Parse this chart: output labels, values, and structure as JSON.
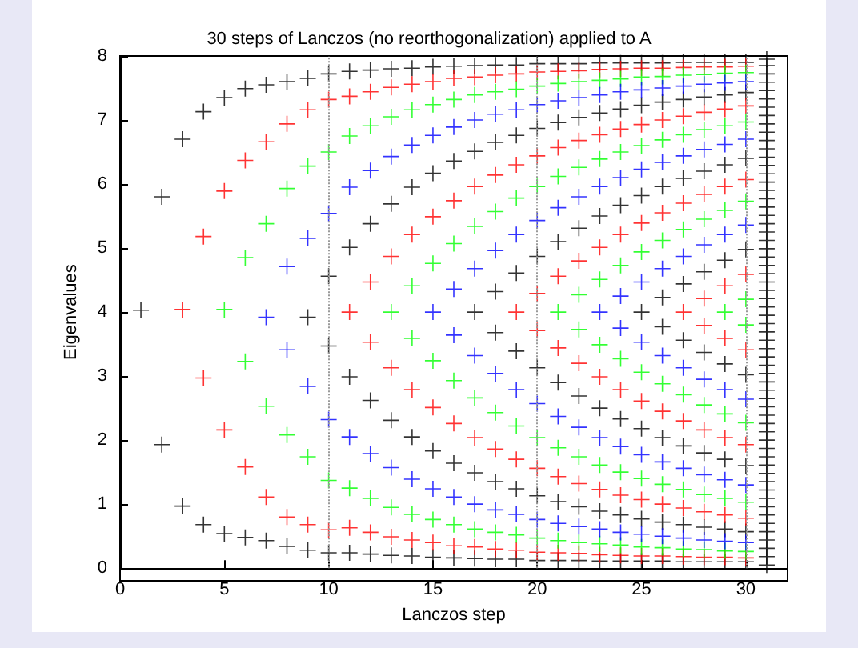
{
  "chart_data": {
    "type": "scatter",
    "title": "30 steps of Lanczos (no reorthogonalization) applied to A",
    "xlabel": "Lanczos step",
    "ylabel": "Eigenvalues",
    "xlim": [
      0,
      32
    ],
    "xticks": [
      0,
      5,
      10,
      15,
      20,
      25,
      30
    ],
    "ylim": [
      0,
      8
    ],
    "yticks": [
      0,
      1,
      2,
      3,
      4,
      5,
      6,
      7,
      8
    ],
    "marker": "cross",
    "ref_lines": [
      {
        "axis": "x",
        "value": 10,
        "color": "#999999",
        "line_style": "dotted"
      },
      {
        "axis": "x",
        "value": 20,
        "color": "#999999",
        "line_style": "dotted"
      },
      {
        "axis": "x",
        "value": 30,
        "color": "#999999",
        "line_style": "dotted"
      }
    ],
    "series": [
      {
        "color": "#000000",
        "x": [
          1,
          2,
          2,
          3,
          3,
          4,
          4,
          5,
          5,
          6,
          6,
          7,
          7,
          8,
          8,
          9,
          9,
          9,
          10,
          10,
          10,
          10,
          11,
          11,
          11,
          11,
          12,
          12,
          12,
          12,
          13,
          13,
          13,
          13,
          14,
          14,
          14,
          14,
          15,
          15,
          15,
          15,
          16,
          16,
          16,
          16,
          17,
          17,
          17,
          17,
          17,
          18,
          18,
          18,
          18,
          18,
          18,
          19,
          19,
          19,
          19,
          19,
          19,
          20,
          20,
          20,
          20,
          20,
          20,
          21,
          21,
          21,
          21,
          21,
          21,
          22,
          22,
          22,
          22,
          22,
          22,
          23,
          23,
          23,
          23,
          23,
          23,
          24,
          24,
          24,
          24,
          24,
          24,
          25,
          25,
          25,
          25,
          25,
          25,
          25,
          26,
          26,
          26,
          26,
          26,
          26,
          26,
          26,
          27,
          27,
          27,
          27,
          27,
          27,
          27,
          27,
          28,
          28,
          28,
          28,
          28,
          28,
          28,
          28,
          29,
          29,
          29,
          29,
          29,
          29,
          29,
          29,
          30,
          30,
          30,
          30,
          30,
          30,
          30,
          30,
          31,
          31,
          31,
          31,
          31,
          31,
          31,
          31,
          31,
          31,
          31,
          31,
          31,
          31,
          31,
          31,
          31,
          31,
          31,
          31,
          31,
          31,
          31,
          31,
          31,
          31,
          31,
          31,
          31,
          31,
          31,
          31,
          31,
          31,
          31,
          31,
          31,
          31,
          31,
          31,
          31,
          31,
          31,
          31,
          31,
          31,
          31,
          31,
          31,
          31,
          31,
          31,
          31,
          31,
          31,
          31,
          31,
          31,
          31,
          31,
          31,
          31
        ],
        "values": [
          4.03,
          5.8,
          1.93,
          6.7,
          0.97,
          7.13,
          0.68,
          7.35,
          0.54,
          7.49,
          0.48,
          7.55,
          0.43,
          7.6,
          0.34,
          7.65,
          0.28,
          3.92,
          7.72,
          0.24,
          4.56,
          3.47,
          7.76,
          0.24,
          5.01,
          2.99,
          7.78,
          0.22,
          5.38,
          2.62,
          7.8,
          0.2,
          5.69,
          2.31,
          7.81,
          0.19,
          5.95,
          2.05,
          7.83,
          0.17,
          6.17,
          1.83,
          7.84,
          0.16,
          6.36,
          1.64,
          7.85,
          0.15,
          6.51,
          1.49,
          4.0,
          7.86,
          0.14,
          6.65,
          1.35,
          4.32,
          3.68,
          7.86,
          0.14,
          6.76,
          1.24,
          4.61,
          3.39,
          7.88,
          0.12,
          6.87,
          1.13,
          4.87,
          3.13,
          7.88,
          0.12,
          6.96,
          1.04,
          5.1,
          2.9,
          7.88,
          0.12,
          7.04,
          0.96,
          5.31,
          2.69,
          7.89,
          0.11,
          7.11,
          0.89,
          5.5,
          2.5,
          7.89,
          0.11,
          7.17,
          0.83,
          5.67,
          2.33,
          7.89,
          0.11,
          7.23,
          0.77,
          5.82,
          2.18,
          4.0,
          7.89,
          0.11,
          7.28,
          0.72,
          5.96,
          2.04,
          4.23,
          3.77,
          7.9,
          0.1,
          7.32,
          0.68,
          6.09,
          1.91,
          4.44,
          3.56,
          7.9,
          0.1,
          7.36,
          0.64,
          6.2,
          1.8,
          4.63,
          3.37,
          7.9,
          0.1,
          7.39,
          0.61,
          6.3,
          1.7,
          4.81,
          3.19,
          7.9,
          0.1,
          7.43,
          0.57,
          6.4,
          1.6,
          4.98,
          3.02,
          0.05,
          0.18,
          0.31,
          0.44,
          0.57,
          0.7,
          0.83,
          0.96,
          1.09,
          1.22,
          1.35,
          1.48,
          1.61,
          1.74,
          1.87,
          2.0,
          2.13,
          2.26,
          2.39,
          2.52,
          2.65,
          2.78,
          2.91,
          3.04,
          3.17,
          3.3,
          3.43,
          3.56,
          3.69,
          3.82,
          3.95,
          4.08,
          4.21,
          4.34,
          4.47,
          4.6,
          4.73,
          4.86,
          4.99,
          5.12,
          5.25,
          5.38,
          5.51,
          5.64,
          5.77,
          5.9,
          6.03,
          6.16,
          6.29,
          6.42,
          6.55,
          6.68,
          6.81,
          6.94,
          7.07,
          7.2,
          7.33,
          7.46,
          7.59,
          7.72,
          7.85,
          7.95
        ]
      },
      {
        "color": "#ff0000",
        "x": [
          3,
          4,
          4,
          5,
          5,
          6,
          6,
          7,
          7,
          8,
          8,
          9,
          9,
          10,
          10,
          11,
          11,
          11,
          12,
          12,
          12,
          12,
          13,
          13,
          13,
          13,
          14,
          14,
          14,
          14,
          15,
          15,
          15,
          15,
          16,
          16,
          16,
          16,
          17,
          17,
          17,
          17,
          18,
          18,
          18,
          18,
          19,
          19,
          19,
          19,
          19,
          20,
          20,
          20,
          20,
          20,
          20,
          21,
          21,
          21,
          21,
          21,
          21,
          22,
          22,
          22,
          22,
          22,
          22,
          23,
          23,
          23,
          23,
          23,
          23,
          24,
          24,
          24,
          24,
          24,
          24,
          25,
          25,
          25,
          25,
          25,
          25,
          26,
          26,
          26,
          26,
          26,
          26,
          27,
          27,
          27,
          27,
          27,
          27,
          27,
          28,
          28,
          28,
          28,
          28,
          28,
          28,
          28,
          29,
          29,
          29,
          29,
          29,
          29,
          29,
          29,
          30,
          30,
          30,
          30,
          30,
          30,
          30,
          30
        ],
        "values": [
          4.04,
          5.18,
          2.97,
          5.89,
          2.16,
          6.37,
          1.58,
          6.66,
          1.11,
          6.94,
          0.8,
          7.16,
          0.68,
          7.32,
          0.6,
          7.37,
          0.63,
          4.0,
          7.44,
          0.56,
          4.47,
          3.53,
          7.51,
          0.49,
          4.87,
          3.13,
          7.56,
          0.44,
          5.21,
          2.79,
          7.6,
          0.4,
          5.49,
          2.51,
          7.65,
          0.35,
          5.74,
          2.26,
          7.67,
          0.33,
          5.96,
          2.04,
          7.7,
          0.3,
          6.14,
          1.86,
          7.72,
          0.28,
          6.3,
          1.7,
          4.0,
          7.75,
          0.25,
          6.44,
          1.56,
          4.29,
          3.71,
          7.76,
          0.24,
          6.57,
          1.43,
          4.56,
          3.44,
          7.77,
          0.23,
          6.68,
          1.32,
          4.8,
          3.2,
          7.79,
          0.21,
          6.77,
          1.23,
          5.01,
          2.99,
          7.8,
          0.2,
          6.86,
          1.14,
          5.21,
          2.79,
          7.81,
          0.19,
          6.93,
          1.07,
          5.39,
          2.61,
          7.81,
          0.19,
          7.0,
          1.0,
          5.55,
          2.45,
          7.82,
          0.18,
          7.06,
          0.94,
          5.7,
          2.3,
          4.0,
          7.83,
          0.17,
          7.12,
          0.88,
          5.84,
          2.16,
          4.21,
          3.79,
          7.83,
          0.17,
          7.17,
          0.83,
          5.96,
          2.04,
          4.41,
          3.59,
          7.84,
          0.16,
          7.22,
          0.78,
          6.07,
          1.93,
          4.59,
          3.41
        ]
      },
      {
        "color": "#00ff00",
        "x": [
          5,
          6,
          6,
          7,
          7,
          8,
          8,
          9,
          9,
          10,
          10,
          11,
          11,
          12,
          12,
          13,
          13,
          13,
          14,
          14,
          14,
          14,
          15,
          15,
          15,
          15,
          16,
          16,
          16,
          16,
          17,
          17,
          17,
          17,
          18,
          18,
          18,
          18,
          19,
          19,
          19,
          19,
          20,
          20,
          20,
          20,
          21,
          21,
          21,
          21,
          21,
          22,
          22,
          22,
          22,
          22,
          22,
          23,
          23,
          23,
          23,
          23,
          23,
          24,
          24,
          24,
          24,
          24,
          24,
          25,
          25,
          25,
          25,
          25,
          25,
          26,
          26,
          26,
          26,
          26,
          26,
          27,
          27,
          27,
          27,
          27,
          27,
          28,
          28,
          28,
          28,
          28,
          28,
          29,
          29,
          29,
          29,
          29,
          29,
          29,
          30,
          30,
          30,
          30,
          30,
          30,
          30,
          30
        ],
        "values": [
          4.04,
          4.85,
          3.23,
          5.38,
          2.53,
          5.93,
          2.08,
          6.28,
          1.74,
          6.5,
          1.37,
          6.75,
          1.25,
          6.91,
          1.09,
          7.05,
          0.95,
          4.0,
          7.16,
          0.84,
          4.41,
          3.59,
          7.24,
          0.76,
          4.76,
          3.24,
          7.32,
          0.68,
          5.07,
          2.93,
          7.39,
          0.61,
          5.34,
          2.66,
          7.44,
          0.56,
          5.57,
          2.43,
          7.48,
          0.52,
          5.78,
          2.22,
          7.53,
          0.47,
          5.96,
          2.04,
          7.57,
          0.43,
          6.12,
          1.88,
          4.0,
          7.6,
          0.4,
          6.26,
          1.74,
          4.27,
          3.73,
          7.62,
          0.38,
          6.39,
          1.61,
          4.51,
          3.49,
          7.64,
          0.36,
          6.5,
          1.5,
          4.73,
          3.27,
          7.67,
          0.33,
          6.6,
          1.4,
          4.94,
          3.06,
          7.68,
          0.32,
          6.69,
          1.31,
          5.12,
          2.88,
          7.7,
          0.3,
          6.77,
          1.23,
          5.29,
          2.71,
          7.71,
          0.29,
          6.85,
          1.15,
          5.45,
          2.55,
          7.73,
          0.27,
          6.91,
          1.09,
          5.59,
          2.41,
          4.0,
          7.74,
          0.26,
          6.97,
          1.03,
          5.73,
          2.27,
          4.2,
          3.8
        ]
      },
      {
        "color": "#0000ff",
        "x": [
          7,
          8,
          8,
          9,
          9,
          10,
          10,
          11,
          11,
          12,
          12,
          13,
          13,
          14,
          14,
          15,
          15,
          15,
          16,
          16,
          16,
          16,
          17,
          17,
          17,
          17,
          18,
          18,
          18,
          18,
          19,
          19,
          19,
          19,
          20,
          20,
          20,
          20,
          21,
          21,
          21,
          21,
          22,
          22,
          22,
          22,
          23,
          23,
          23,
          23,
          23,
          24,
          24,
          24,
          24,
          24,
          24,
          25,
          25,
          25,
          25,
          25,
          25,
          26,
          26,
          26,
          26,
          26,
          26,
          27,
          27,
          27,
          27,
          27,
          27,
          28,
          28,
          28,
          28,
          28,
          28,
          29,
          29,
          29,
          29,
          29,
          29,
          30,
          30,
          30,
          30,
          30,
          30
        ],
        "values": [
          3.92,
          4.71,
          3.41,
          5.15,
          2.84,
          5.54,
          2.32,
          5.95,
          2.05,
          6.21,
          1.79,
          6.43,
          1.57,
          6.61,
          1.39,
          6.76,
          1.24,
          4.0,
          6.89,
          1.11,
          4.36,
          3.64,
          7.0,
          1.0,
          4.68,
          3.32,
          7.09,
          0.91,
          4.96,
          3.04,
          7.16,
          0.84,
          5.21,
          2.79,
          7.24,
          0.76,
          5.43,
          2.57,
          7.3,
          0.7,
          5.63,
          2.37,
          7.35,
          0.65,
          5.8,
          2.2,
          7.39,
          0.61,
          5.96,
          2.04,
          4.0,
          7.44,
          0.56,
          6.1,
          1.9,
          4.25,
          3.75,
          7.47,
          0.53,
          6.23,
          1.77,
          4.47,
          3.53,
          7.5,
          0.5,
          6.34,
          1.66,
          4.68,
          3.32,
          7.53,
          0.47,
          6.44,
          1.56,
          4.87,
          3.13,
          7.56,
          0.44,
          6.54,
          1.46,
          5.05,
          2.95,
          7.58,
          0.42,
          6.62,
          1.38,
          5.21,
          2.79,
          7.6,
          0.4,
          6.7,
          1.3,
          5.36,
          2.64
        ]
      }
    ]
  }
}
